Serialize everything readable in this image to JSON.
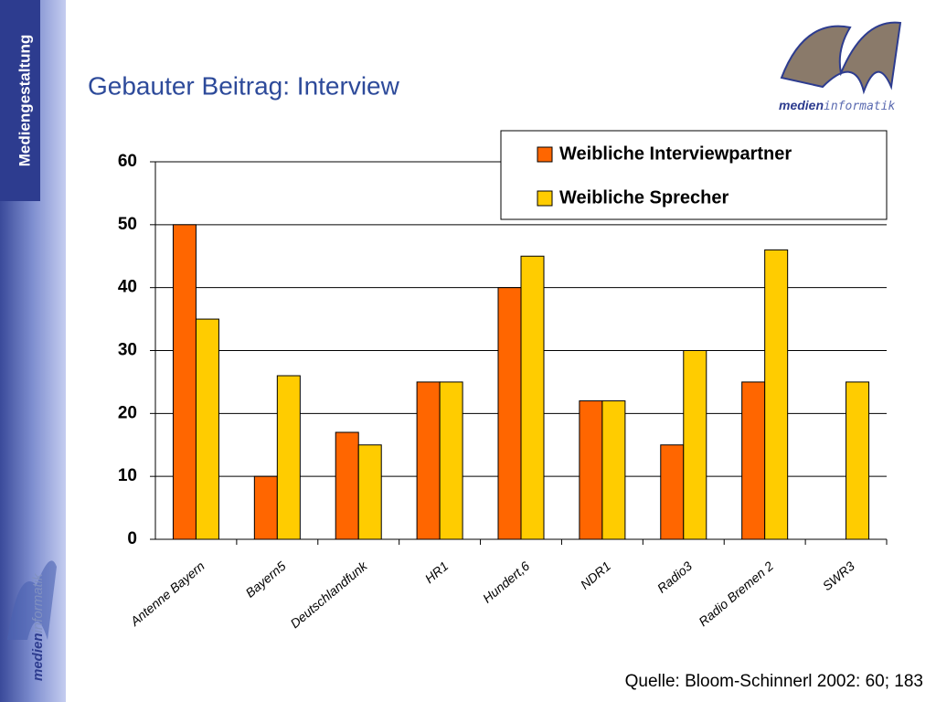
{
  "sidebar": {
    "label": "Mediengestaltung"
  },
  "logo": {
    "word1": "medien",
    "word2": "informatik"
  },
  "slide_title": "Gebauter Beitrag: Interview",
  "source": "Quelle: Bloom-Schinnerl 2002: 60; 183",
  "chart_data": {
    "type": "bar",
    "categories": [
      "Antenne Bayern",
      "Bayern5",
      "Deutschlandfunk",
      "HR1",
      "Hundert,6",
      "NDR1",
      "Radio3",
      "Radio Bremen 2",
      "SWR3"
    ],
    "series": [
      {
        "name": "Weibliche Interviewpartner",
        "color": "#ff6600",
        "values": [
          50,
          10,
          17,
          25,
          40,
          22,
          15,
          25,
          null
        ]
      },
      {
        "name": "Weibliche Sprecher",
        "color": "#ffcc00",
        "values": [
          35,
          26,
          15,
          25,
          45,
          22,
          30,
          46,
          25
        ]
      }
    ],
    "ylim": [
      0,
      60
    ],
    "yticks": [
      0,
      10,
      20,
      30,
      40,
      50,
      60
    ],
    "grid": true,
    "legend": "top-right"
  }
}
